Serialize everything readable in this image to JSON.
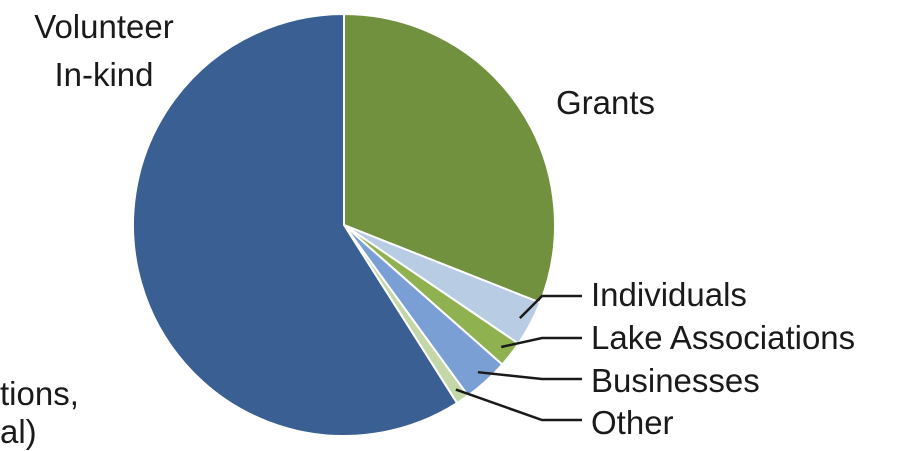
{
  "chart_data": {
    "type": "pie",
    "title": "",
    "slices": [
      {
        "label": "Grants",
        "value": 31,
        "color": "#71913e"
      },
      {
        "label": "Individuals",
        "value": 3.5,
        "color": "#b8cce4"
      },
      {
        "label": "Lake Associations",
        "value": 2,
        "color": "#8fb150"
      },
      {
        "label": "Businesses",
        "value": 3.5,
        "color": "#7a9fd4"
      },
      {
        "label": "Other",
        "value": 1,
        "color": "#c4d7a8"
      },
      {
        "label": "Volunteer In-kind",
        "value": 59,
        "color": "#3a5f92"
      }
    ],
    "legend": "none",
    "start_angle": "12 o'clock",
    "direction": "clockwise"
  },
  "clipped_text": [
    "tions,",
    "al)"
  ]
}
